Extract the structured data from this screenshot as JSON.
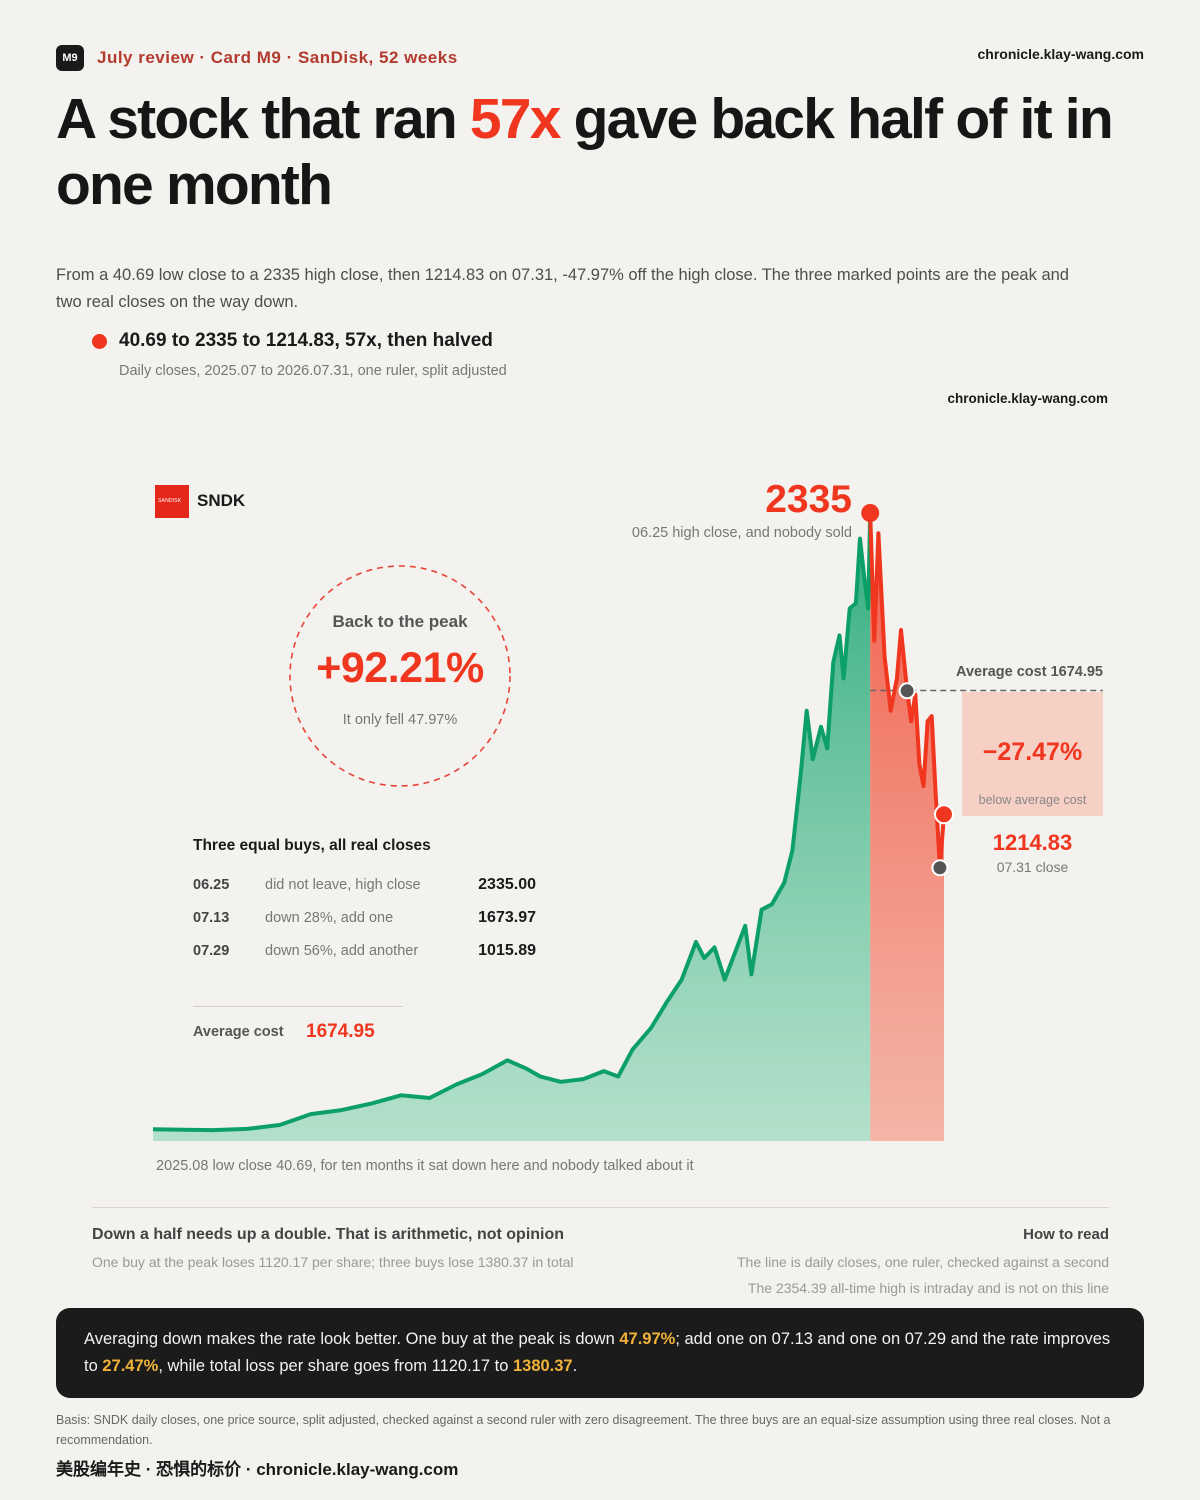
{
  "header": {
    "badge": "M9",
    "kicker": "July review · Card M9 · SanDisk, 52 weeks",
    "site": "chronicle.klay-wang.com",
    "headline_pre": "A stock that ran ",
    "headline_highlight": "57x",
    "headline_post": " gave back half of it in one month",
    "lede": "From a 40.69 low close to a 2335 high close, then 1214.83 on 07.31, -47.97% off the high close. The three marked points are the peak and two real closes on the way down.",
    "legend_title": "40.69 to 2335 to 1214.83, 57x, then halved",
    "legend_sub": "Daily closes, 2025.07 to 2026.07.31, one ruler, split adjusted",
    "site_mid": "chronicle.klay-wang.com"
  },
  "ticker": {
    "logo_text": "SANDISK",
    "symbol": "SNDK"
  },
  "recovery": {
    "label": "Back to the peak",
    "value": "+92.21%",
    "sub": "It only fell 47.97%"
  },
  "peak": {
    "value": "2335",
    "note": "06.25 high close, and nobody sold"
  },
  "average_line": {
    "label": "Average cost 1674.95",
    "drawdown_value": "−27.47%",
    "drawdown_sub": "below average cost"
  },
  "last_close": {
    "value": "1214.83",
    "note": "07.31 close"
  },
  "buys": {
    "title": "Three equal buys, all real closes",
    "rows": [
      {
        "date": "06.25",
        "desc": "did not leave, high close",
        "price": "2335.00"
      },
      {
        "date": "07.13",
        "desc": "down 28%, add one",
        "price": "1673.97"
      },
      {
        "date": "07.29",
        "desc": "down 56%, add another",
        "price": "1015.89"
      }
    ],
    "avg_label": "Average cost",
    "avg_value": "1674.95"
  },
  "baseline_note": "2025.08 low close 40.69, for ten months it sat down here and nobody talked about it",
  "footer": {
    "left_title": "Down a half needs up a double. That is arithmetic, not opinion",
    "left_sub": "One buy at the peak loses 1120.17 per share; three buys lose 1380.37 in total",
    "right_title": "How to read",
    "right_sub1": "The line is daily closes, one ruler, checked against a second",
    "right_sub2": "The 2354.39 all-time high is intraday and is not on this line"
  },
  "note": {
    "t1": "Averaging down makes the rate look better. One buy at the peak is down ",
    "g1": "47.97%",
    "t2": "; add one on 07.13 and one on 07.29 and the rate improves to ",
    "g2": "27.47%",
    "t3": ", while total loss per share goes from 1120.17 to ",
    "g3": "1380.37",
    "t4": "."
  },
  "basis": "Basis: SNDK daily closes, one price source, split adjusted, checked against a second ruler with zero disagreement. The three buys are an equal-size assumption using three real closes. Not a recommendation.",
  "brand": "美股编年史 · 恐惧的标价 · chronicle.klay-wang.com",
  "colors": {
    "rise_line": "#0c9f68",
    "rise_fill": "#7fd1ad",
    "fall_line": "#f0361f",
    "fall_fill": "#f48c77",
    "accent": "#f0361f",
    "gold": "#f1b23a"
  },
  "chart_data": {
    "type": "area",
    "title": "",
    "xlabel": "",
    "ylabel": "",
    "x_range": [
      "2025-07",
      "2026-07-31"
    ],
    "ylim": [
      0,
      2400
    ],
    "unit": "USD close",
    "series": [
      {
        "name": "rise",
        "points": [
          [
            "2025-07-10",
            44
          ],
          [
            "2025-07-25",
            42
          ],
          [
            "2025-08-08",
            40.69
          ],
          [
            "2025-08-25",
            45
          ],
          [
            "2025-09-10",
            60
          ],
          [
            "2025-09-25",
            100
          ],
          [
            "2025-10-10",
            115
          ],
          [
            "2025-10-25",
            140
          ],
          [
            "2025-11-08",
            170
          ],
          [
            "2025-11-22",
            160
          ],
          [
            "2025-12-05",
            210
          ],
          [
            "2025-12-18",
            250
          ],
          [
            "2025-12-30",
            300
          ],
          [
            "2026-01-08",
            270
          ],
          [
            "2026-01-15",
            240
          ],
          [
            "2026-01-25",
            220
          ],
          [
            "2026-02-05",
            230
          ],
          [
            "2026-02-15",
            260
          ],
          [
            "2026-02-22",
            240
          ],
          [
            "2026-03-01",
            340
          ],
          [
            "2026-03-10",
            420
          ],
          [
            "2026-03-18",
            520
          ],
          [
            "2026-03-25",
            600
          ],
          [
            "2026-04-01",
            740
          ],
          [
            "2026-04-05",
            680
          ],
          [
            "2026-04-10",
            720
          ],
          [
            "2026-04-15",
            600
          ],
          [
            "2026-04-20",
            700
          ],
          [
            "2026-04-25",
            800
          ],
          [
            "2026-04-28",
            620
          ],
          [
            "2026-05-03",
            860
          ],
          [
            "2026-05-08",
            880
          ],
          [
            "2026-05-14",
            960
          ],
          [
            "2026-05-18",
            1080
          ],
          [
            "2026-05-22",
            1360
          ],
          [
            "2026-05-25",
            1600
          ],
          [
            "2026-05-28",
            1420
          ],
          [
            "2026-06-01",
            1540
          ],
          [
            "2026-06-04",
            1460
          ],
          [
            "2026-06-07",
            1780
          ],
          [
            "2026-06-10",
            1880
          ],
          [
            "2026-06-12",
            1720
          ],
          [
            "2026-06-15",
            1980
          ],
          [
            "2026-06-18",
            2000
          ],
          [
            "2026-06-20",
            2240
          ],
          [
            "2026-06-22",
            2100
          ],
          [
            "2026-06-24",
            1980
          ],
          [
            "2026-06-25",
            2335
          ]
        ]
      },
      {
        "name": "fall",
        "points": [
          [
            "2026-06-25",
            2335
          ],
          [
            "2026-06-27",
            1860
          ],
          [
            "2026-06-29",
            2260
          ],
          [
            "2026-07-02",
            1800
          ],
          [
            "2026-07-05",
            1600
          ],
          [
            "2026-07-08",
            1720
          ],
          [
            "2026-07-10",
            1900
          ],
          [
            "2026-07-13",
            1673.97
          ],
          [
            "2026-07-15",
            1560
          ],
          [
            "2026-07-17",
            1660
          ],
          [
            "2026-07-19",
            1400
          ],
          [
            "2026-07-21",
            1320
          ],
          [
            "2026-07-23",
            1560
          ],
          [
            "2026-07-25",
            1580
          ],
          [
            "2026-07-27",
            1280
          ],
          [
            "2026-07-29",
            1015.89
          ],
          [
            "2026-07-31",
            1214.83
          ]
        ]
      }
    ],
    "average_cost": 1674.95,
    "markers": [
      {
        "date": "2026-06-25",
        "value": 2335,
        "label": "peak"
      },
      {
        "date": "2026-07-13",
        "value": 1673.97,
        "label": "buy 2"
      },
      {
        "date": "2026-07-29",
        "value": 1015.89,
        "label": "buy 3"
      },
      {
        "date": "2026-07-31",
        "value": 1214.83,
        "label": "last close"
      }
    ],
    "grid": false,
    "legend": "none"
  }
}
